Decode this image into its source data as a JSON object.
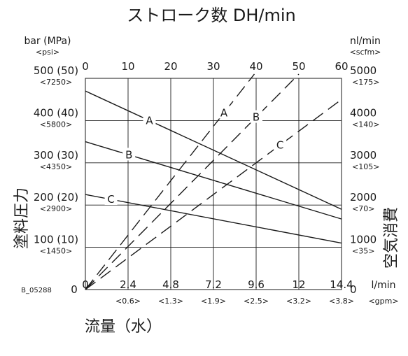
{
  "chart_data": {
    "type": "line",
    "title": "ストローク数 DH/min",
    "top_axis": {
      "ticks": [
        "0",
        "10",
        "20",
        "30",
        "40",
        "50",
        "60"
      ],
      "range": [
        0,
        60
      ]
    },
    "bottom_axis": {
      "title": "流量（水）",
      "unit": "l/min",
      "unit_alt": "<gpm>",
      "range": [
        0,
        14.4
      ],
      "ticks": [
        {
          "value": 0,
          "label": "0",
          "sub": ""
        },
        {
          "value": 2.4,
          "label": "2.4",
          "sub": "<0.6>"
        },
        {
          "value": 4.8,
          "label": "4.8",
          "sub": "<1.3>"
        },
        {
          "value": 7.2,
          "label": "7.2",
          "sub": "<1.9>"
        },
        {
          "value": 9.6,
          "label": "9.6",
          "sub": "<2.5>"
        },
        {
          "value": 12,
          "label": "12",
          "sub": "<3.2>"
        },
        {
          "value": 14.4,
          "label": "14.4",
          "sub": "<3.8>"
        }
      ]
    },
    "left_axis": {
      "title": "塗料圧力",
      "unit": "bar (MPa)",
      "unit_alt": "<psi>",
      "range": [
        0,
        500
      ],
      "ticks": [
        {
          "value": 0,
          "label": "0",
          "sub": ""
        },
        {
          "value": 100,
          "label": "100 (10)",
          "sub": "<1450>"
        },
        {
          "value": 200,
          "label": "200 (20)",
          "sub": "<2900>"
        },
        {
          "value": 300,
          "label": "300 (30)",
          "sub": "<4350>"
        },
        {
          "value": 400,
          "label": "400 (40)",
          "sub": "<5800>"
        },
        {
          "value": 500,
          "label": "500 (50)",
          "sub": "<7250>"
        }
      ]
    },
    "right_axis": {
      "title": "空気消費",
      "unit": "nl/min",
      "unit_alt": "<scfm>",
      "range": [
        0,
        5000
      ],
      "ticks": [
        {
          "value": 0,
          "label": "0",
          "sub": ""
        },
        {
          "value": 1000,
          "label": "1000",
          "sub": "<35>"
        },
        {
          "value": 2000,
          "label": "2000",
          "sub": "<70>"
        },
        {
          "value": 3000,
          "label": "3000",
          "sub": "<105>"
        },
        {
          "value": 4000,
          "label": "4000",
          "sub": "<140>"
        },
        {
          "value": 5000,
          "label": "5000",
          "sub": "<175>"
        }
      ]
    },
    "grid": true,
    "series": [
      {
        "name": "A",
        "kind": "paint-pressure",
        "style": "solid",
        "axis": "left",
        "x": [
          0,
          14.4
        ],
        "y": [
          470,
          190
        ]
      },
      {
        "name": "B",
        "kind": "paint-pressure",
        "style": "solid",
        "axis": "left",
        "x": [
          0,
          14.4
        ],
        "y": [
          350,
          167
        ]
      },
      {
        "name": "C",
        "kind": "paint-pressure",
        "style": "solid",
        "axis": "left",
        "x": [
          0,
          14.4
        ],
        "y": [
          225,
          110
        ]
      },
      {
        "name": "A",
        "kind": "air-consumption",
        "style": "dashed",
        "axis": "right",
        "x": [
          0,
          9.5
        ],
        "y": [
          0,
          5100
        ]
      },
      {
        "name": "B",
        "kind": "air-consumption",
        "style": "dashed",
        "axis": "right",
        "x": [
          0,
          12.0
        ],
        "y": [
          0,
          5100
        ]
      },
      {
        "name": "C",
        "kind": "air-consumption",
        "style": "dashed",
        "axis": "right",
        "x": [
          0,
          14.4
        ],
        "y": [
          0,
          4500
        ]
      }
    ]
  },
  "figure_ref": "B_05288",
  "colors": {
    "line": "#1a1a1a",
    "grid": "#1a1a1a"
  }
}
